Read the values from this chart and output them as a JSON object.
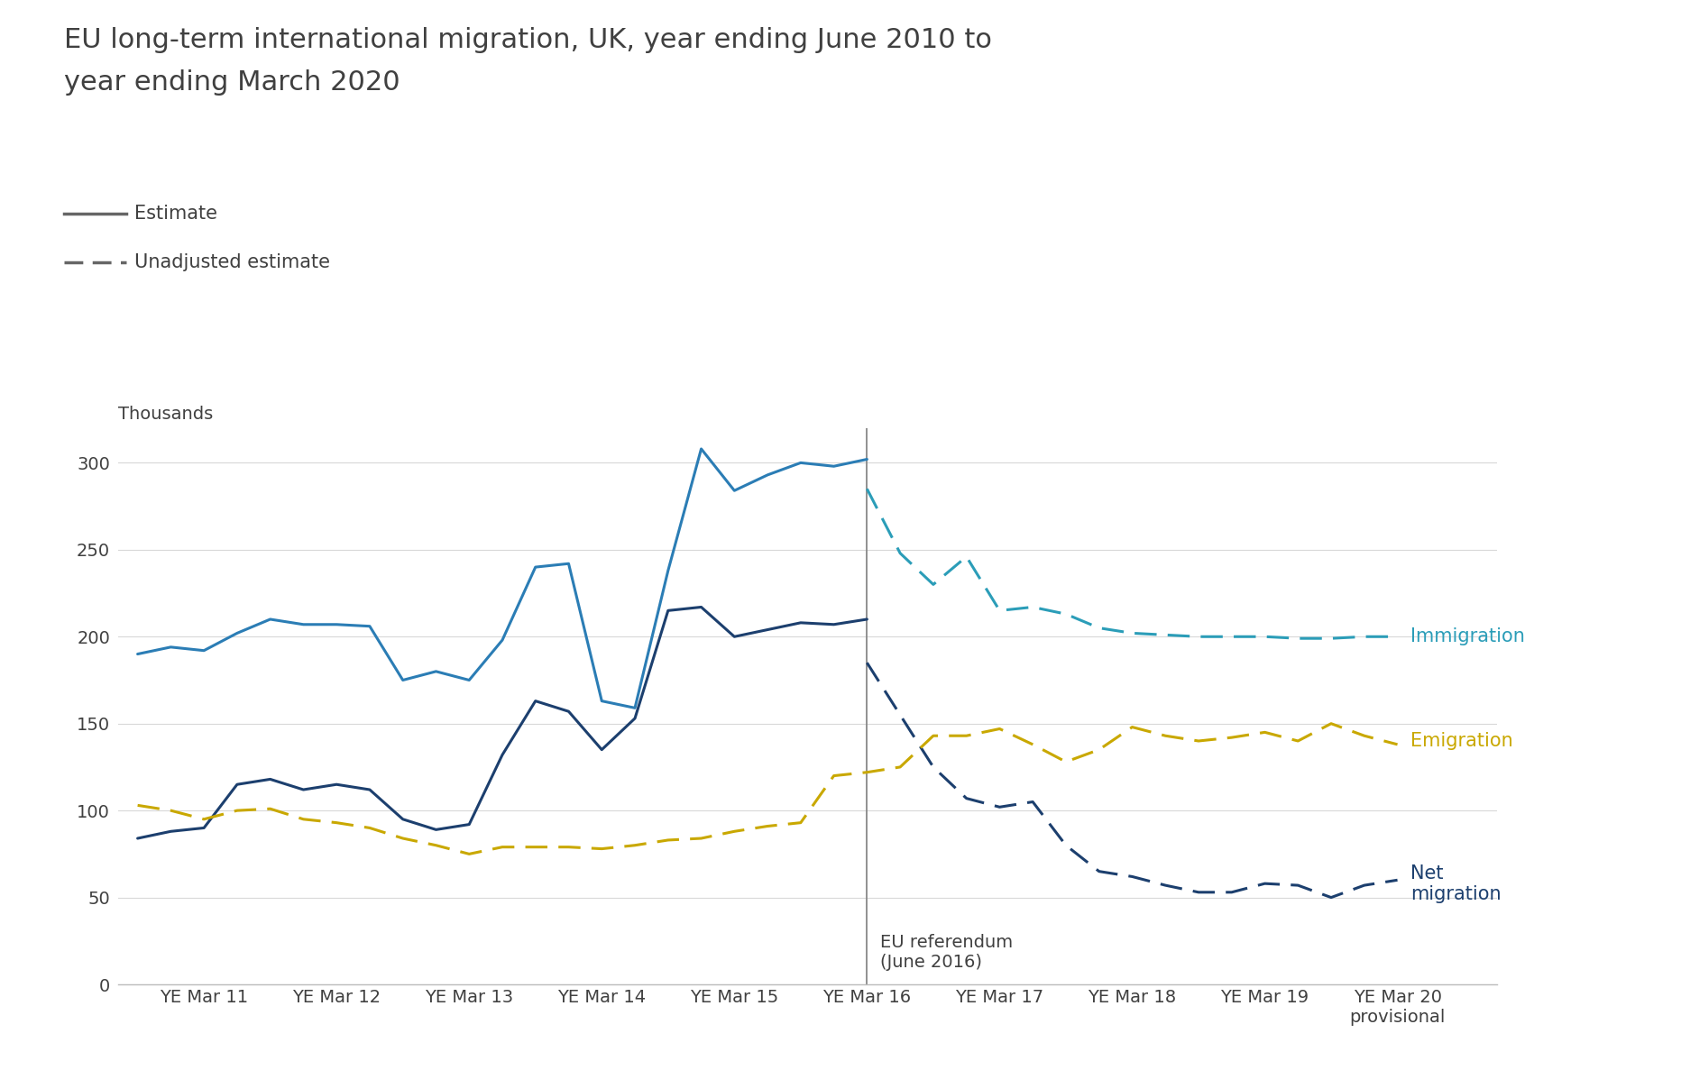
{
  "title_line1": "EU long-term international migration, UK, year ending June 2010 to",
  "title_line2": "year ending March 2020",
  "ylabel": "Thousands",
  "background_color": "#ffffff",
  "ylim": [
    0,
    320
  ],
  "yticks": [
    0,
    50,
    100,
    150,
    200,
    250,
    300
  ],
  "colors": {
    "immigration_solid": "#2b7db5",
    "immigration_dashed": "#2b9db8",
    "net_solid": "#1c3f6e",
    "net_dashed": "#1c3f6e",
    "emigration_dashed": "#c9a800",
    "vline": "#888888",
    "grid": "#d8d8d8",
    "axis_line": "#bbbbbb",
    "text": "#404040",
    "legend_line": "#666666"
  },
  "x_labels": [
    "YE Mar 11",
    "YE Mar 12",
    "YE Mar 13",
    "YE Mar 14",
    "YE Mar 15",
    "YE Mar 16",
    "YE Mar 17",
    "YE Mar 18",
    "YE Mar 19",
    "YE Mar 20\nprovisional"
  ],
  "x_positions": [
    1,
    3,
    5,
    7,
    9,
    11,
    13,
    15,
    17,
    19
  ],
  "vline_x": 11,
  "vline_label": "EU referendum\n(June 2016)",
  "immigration_solid_x": [
    0,
    0.5,
    1,
    1.5,
    2,
    2.5,
    3,
    3.5,
    4,
    4.5,
    5,
    5.5,
    6,
    6.5,
    7,
    7.5,
    8,
    8.5,
    9,
    9.5,
    10,
    10.5,
    11
  ],
  "immigration_solid_y": [
    190,
    194,
    192,
    202,
    210,
    207,
    207,
    206,
    175,
    180,
    175,
    198,
    240,
    242,
    163,
    159,
    238,
    308,
    284,
    293,
    300,
    298,
    302
  ],
  "immigration_dashed_x": [
    11,
    11.5,
    12,
    12.5,
    13,
    13.5,
    14,
    14.5,
    15,
    15.5,
    16,
    16.5,
    17,
    17.5,
    18,
    18.5,
    19
  ],
  "immigration_dashed_y": [
    285,
    248,
    230,
    246,
    215,
    217,
    213,
    205,
    202,
    201,
    200,
    200,
    200,
    199,
    199,
    200,
    200
  ],
  "net_solid_x": [
    0,
    0.5,
    1,
    1.5,
    2,
    2.5,
    3,
    3.5,
    4,
    4.5,
    5,
    5.5,
    6,
    6.5,
    7,
    7.5,
    8,
    8.5,
    9,
    9.5,
    10,
    10.5,
    11
  ],
  "net_solid_y": [
    84,
    88,
    90,
    115,
    118,
    112,
    115,
    112,
    95,
    89,
    92,
    132,
    163,
    157,
    135,
    153,
    215,
    217,
    200,
    204,
    208,
    207,
    210
  ],
  "net_dashed_x": [
    11,
    11.5,
    12,
    12.5,
    13,
    13.5,
    14,
    14.5,
    15,
    15.5,
    16,
    16.5,
    17,
    17.5,
    18,
    18.5,
    19
  ],
  "net_dashed_y": [
    185,
    155,
    125,
    107,
    102,
    105,
    80,
    65,
    62,
    57,
    53,
    53,
    58,
    57,
    50,
    57,
    60
  ],
  "emigration_dashed_x": [
    0,
    0.5,
    1,
    1.5,
    2,
    2.5,
    3,
    3.5,
    4,
    4.5,
    5,
    5.5,
    6,
    6.5,
    7,
    7.5,
    8,
    8.5,
    9,
    9.5,
    10,
    10.5,
    11,
    11.5,
    12,
    12.5,
    13,
    13.5,
    14,
    14.5,
    15,
    15.5,
    16,
    16.5,
    17,
    17.5,
    18,
    18.5,
    19
  ],
  "emigration_dashed_y": [
    103,
    100,
    95,
    100,
    101,
    95,
    93,
    90,
    84,
    80,
    75,
    79,
    79,
    79,
    78,
    80,
    83,
    84,
    88,
    91,
    93,
    120,
    122,
    125,
    143,
    143,
    147,
    138,
    128,
    135,
    148,
    143,
    140,
    142,
    145,
    140,
    150,
    143,
    138
  ],
  "annotation_immigration": "Immigration",
  "annotation_emigration": "Emigration",
  "annotation_net": "Net\nmigration",
  "title_fontsize": 22,
  "label_fontsize": 15,
  "tick_fontsize": 14,
  "annotation_fontsize": 15
}
